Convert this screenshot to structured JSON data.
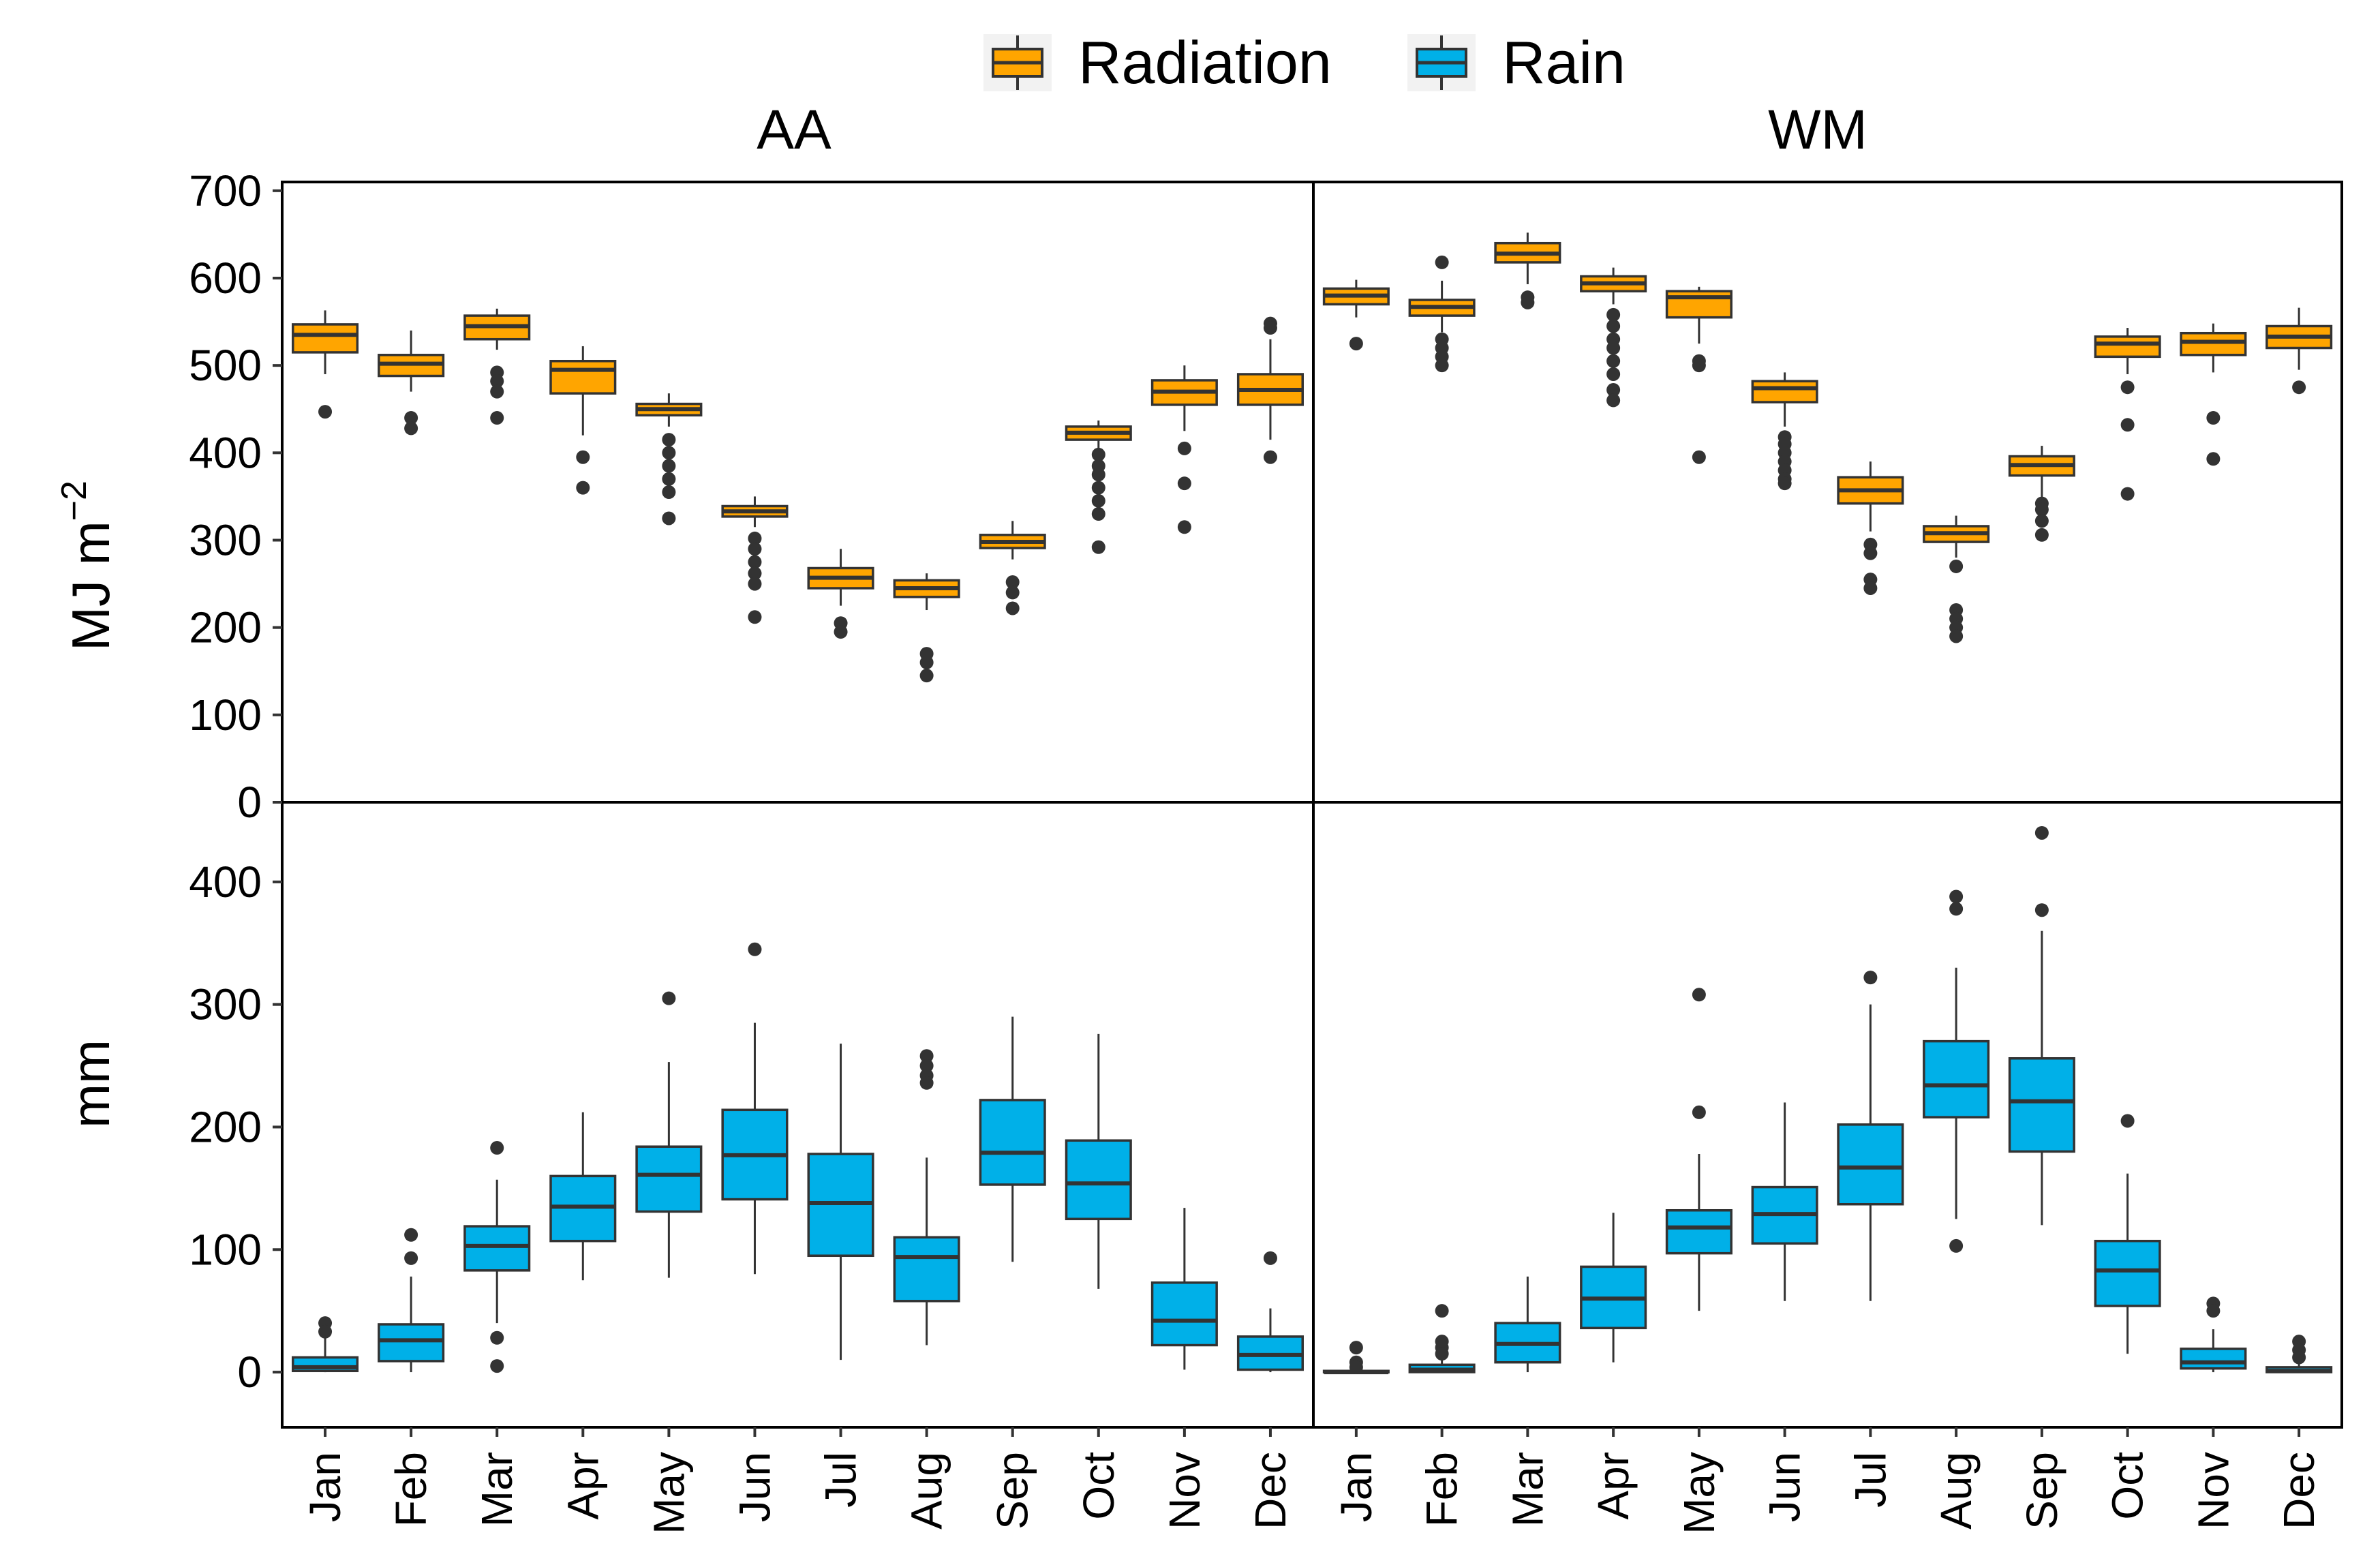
{
  "chart_data": {
    "type": "boxplot",
    "legend": {
      "position": "top",
      "items": [
        {
          "label": "Radiation",
          "color": "#FFA500"
        },
        {
          "label": "Rain",
          "color": "#00B0E8"
        }
      ]
    },
    "panels": [
      "AA",
      "WM"
    ],
    "months": [
      "Jan",
      "Feb",
      "Mar",
      "Apr",
      "May",
      "Jun",
      "Jul",
      "Aug",
      "Sep",
      "Oct",
      "Nov",
      "Dec"
    ],
    "radiation": {
      "ylabel_main": "MJ m",
      "ylabel_sup": "−2",
      "ylim": [
        0,
        710
      ],
      "yticks": [
        0,
        100,
        200,
        300,
        400,
        500,
        600,
        700
      ],
      "ytick_labels": [
        "0",
        "100",
        "200",
        "300",
        "400",
        "500",
        "600",
        "700"
      ],
      "AA": [
        {
          "whisker_low": 490,
          "q1": 515,
          "median": 535,
          "q3": 547,
          "whisker_high": 563,
          "outliers": [
            447
          ]
        },
        {
          "whisker_low": 470,
          "q1": 488,
          "median": 502,
          "q3": 512,
          "whisker_high": 540,
          "outliers": [
            440,
            428
          ]
        },
        {
          "whisker_low": 518,
          "q1": 530,
          "median": 545,
          "q3": 557,
          "whisker_high": 565,
          "outliers": [
            492,
            482,
            470,
            440
          ]
        },
        {
          "whisker_low": 420,
          "q1": 468,
          "median": 495,
          "q3": 505,
          "whisker_high": 522,
          "outliers": [
            395,
            360
          ]
        },
        {
          "whisker_low": 430,
          "q1": 443,
          "median": 450,
          "q3": 456,
          "whisker_high": 468,
          "outliers": [
            415,
            400,
            385,
            370,
            355,
            325
          ]
        },
        {
          "whisker_low": 315,
          "q1": 327,
          "median": 333,
          "q3": 339,
          "whisker_high": 350,
          "outliers": [
            302,
            290,
            275,
            262,
            250,
            212
          ]
        },
        {
          "whisker_low": 225,
          "q1": 245,
          "median": 257,
          "q3": 268,
          "whisker_high": 290,
          "outliers": [
            205,
            195
          ]
        },
        {
          "whisker_low": 220,
          "q1": 235,
          "median": 245,
          "q3": 254,
          "whisker_high": 262,
          "outliers": [
            170,
            160,
            145
          ]
        },
        {
          "whisker_low": 278,
          "q1": 291,
          "median": 298,
          "q3": 306,
          "whisker_high": 322,
          "outliers": [
            252,
            240,
            222
          ]
        },
        {
          "whisker_low": 405,
          "q1": 415,
          "median": 423,
          "q3": 430,
          "whisker_high": 437,
          "outliers": [
            398,
            385,
            375,
            360,
            345,
            330,
            292
          ]
        },
        {
          "whisker_low": 425,
          "q1": 455,
          "median": 470,
          "q3": 483,
          "whisker_high": 500,
          "outliers": [
            405,
            365,
            315
          ]
        },
        {
          "whisker_low": 415,
          "q1": 455,
          "median": 472,
          "q3": 490,
          "whisker_high": 530,
          "outliers": [
            548,
            543,
            395
          ]
        }
      ],
      "WM": [
        {
          "whisker_low": 555,
          "q1": 570,
          "median": 580,
          "q3": 588,
          "whisker_high": 598,
          "outliers": [
            525
          ]
        },
        {
          "whisker_low": 538,
          "q1": 557,
          "median": 567,
          "q3": 575,
          "whisker_high": 597,
          "outliers": [
            618,
            530,
            520,
            510,
            500
          ]
        },
        {
          "whisker_low": 593,
          "q1": 618,
          "median": 628,
          "q3": 640,
          "whisker_high": 652,
          "outliers": [
            578,
            572
          ]
        },
        {
          "whisker_low": 570,
          "q1": 585,
          "median": 594,
          "q3": 602,
          "whisker_high": 612,
          "outliers": [
            558,
            545,
            530,
            520,
            505,
            490,
            472,
            460
          ]
        },
        {
          "whisker_low": 525,
          "q1": 555,
          "median": 578,
          "q3": 585,
          "whisker_high": 590,
          "outliers": [
            505,
            500,
            395
          ]
        },
        {
          "whisker_low": 430,
          "q1": 458,
          "median": 474,
          "q3": 482,
          "whisker_high": 492,
          "outliers": [
            418,
            410,
            400,
            390,
            380,
            370,
            365
          ]
        },
        {
          "whisker_low": 310,
          "q1": 342,
          "median": 357,
          "q3": 372,
          "whisker_high": 390,
          "outliers": [
            295,
            285,
            255,
            245
          ]
        },
        {
          "whisker_low": 280,
          "q1": 298,
          "median": 308,
          "q3": 316,
          "whisker_high": 328,
          "outliers": [
            270,
            220,
            210,
            200,
            190
          ]
        },
        {
          "whisker_low": 345,
          "q1": 374,
          "median": 386,
          "q3": 396,
          "whisker_high": 408,
          "outliers": [
            342,
            335,
            322,
            306
          ]
        },
        {
          "whisker_low": 490,
          "q1": 510,
          "median": 525,
          "q3": 533,
          "whisker_high": 543,
          "outliers": [
            475,
            432,
            353
          ]
        },
        {
          "whisker_low": 492,
          "q1": 512,
          "median": 527,
          "q3": 537,
          "whisker_high": 548,
          "outliers": [
            440,
            393
          ]
        },
        {
          "whisker_low": 495,
          "q1": 520,
          "median": 533,
          "q3": 545,
          "whisker_high": 566,
          "outliers": [
            475
          ]
        }
      ]
    },
    "rain": {
      "ylabel": "mm",
      "ylim": [
        -45,
        465
      ],
      "yticks": [
        0,
        100,
        200,
        300,
        400
      ],
      "ytick_labels": [
        "0",
        "100",
        "200",
        "300",
        "400"
      ],
      "AA": [
        {
          "whisker_low": 0,
          "q1": 1,
          "median": 4,
          "q3": 12,
          "whisker_high": 28,
          "outliers": [
            40,
            33
          ]
        },
        {
          "whisker_low": 0,
          "q1": 9,
          "median": 26,
          "q3": 39,
          "whisker_high": 78,
          "outliers": [
            112,
            93
          ]
        },
        {
          "whisker_low": 40,
          "q1": 83,
          "median": 103,
          "q3": 119,
          "whisker_high": 157,
          "outliers": [
            183,
            28,
            5
          ]
        },
        {
          "whisker_low": 75,
          "q1": 107,
          "median": 135,
          "q3": 160,
          "whisker_high": 212,
          "outliers": []
        },
        {
          "whisker_low": 77,
          "q1": 131,
          "median": 161,
          "q3": 184,
          "whisker_high": 253,
          "outliers": [
            305
          ]
        },
        {
          "whisker_low": 80,
          "q1": 141,
          "median": 177,
          "q3": 214,
          "whisker_high": 285,
          "outliers": [
            345
          ]
        },
        {
          "whisker_low": 10,
          "q1": 95,
          "median": 138,
          "q3": 178,
          "whisker_high": 268,
          "outliers": []
        },
        {
          "whisker_low": 22,
          "q1": 58,
          "median": 94,
          "q3": 110,
          "whisker_high": 175,
          "outliers": [
            258,
            250,
            242,
            236
          ]
        },
        {
          "whisker_low": 90,
          "q1": 153,
          "median": 179,
          "q3": 222,
          "whisker_high": 290,
          "outliers": []
        },
        {
          "whisker_low": 68,
          "q1": 125,
          "median": 154,
          "q3": 189,
          "whisker_high": 276,
          "outliers": []
        },
        {
          "whisker_low": 2,
          "q1": 22,
          "median": 42,
          "q3": 73,
          "whisker_high": 134,
          "outliers": []
        },
        {
          "whisker_low": 0,
          "q1": 2,
          "median": 14,
          "q3": 29,
          "whisker_high": 52,
          "outliers": [
            93
          ]
        }
      ],
      "WM": [
        {
          "whisker_low": 0,
          "q1": 0,
          "median": 0,
          "q3": 1,
          "whisker_high": 2,
          "outliers": [
            20,
            8,
            4
          ]
        },
        {
          "whisker_low": 0,
          "q1": 0,
          "median": 2,
          "q3": 6,
          "whisker_high": 12,
          "outliers": [
            50,
            25,
            20,
            15
          ]
        },
        {
          "whisker_low": 0,
          "q1": 8,
          "median": 23,
          "q3": 40,
          "whisker_high": 78,
          "outliers": []
        },
        {
          "whisker_low": 8,
          "q1": 36,
          "median": 60,
          "q3": 86,
          "whisker_high": 130,
          "outliers": []
        },
        {
          "whisker_low": 50,
          "q1": 97,
          "median": 118,
          "q3": 132,
          "whisker_high": 178,
          "outliers": [
            308,
            212
          ]
        },
        {
          "whisker_low": 58,
          "q1": 105,
          "median": 129,
          "q3": 151,
          "whisker_high": 220,
          "outliers": []
        },
        {
          "whisker_low": 58,
          "q1": 137,
          "median": 167,
          "q3": 202,
          "whisker_high": 300,
          "outliers": [
            322
          ]
        },
        {
          "whisker_low": 125,
          "q1": 208,
          "median": 234,
          "q3": 270,
          "whisker_high": 330,
          "outliers": [
            388,
            378,
            103
          ]
        },
        {
          "whisker_low": 120,
          "q1": 180,
          "median": 221,
          "q3": 256,
          "whisker_high": 360,
          "outliers": [
            440,
            377
          ]
        },
        {
          "whisker_low": 15,
          "q1": 54,
          "median": 83,
          "q3": 107,
          "whisker_high": 162,
          "outliers": [
            205
          ]
        },
        {
          "whisker_low": 0,
          "q1": 3,
          "median": 8,
          "q3": 19,
          "whisker_high": 35,
          "outliers": [
            56,
            50
          ]
        },
        {
          "whisker_low": 0,
          "q1": 0,
          "median": 1,
          "q3": 4,
          "whisker_high": 8,
          "outliers": [
            25,
            18,
            12
          ]
        }
      ]
    }
  }
}
